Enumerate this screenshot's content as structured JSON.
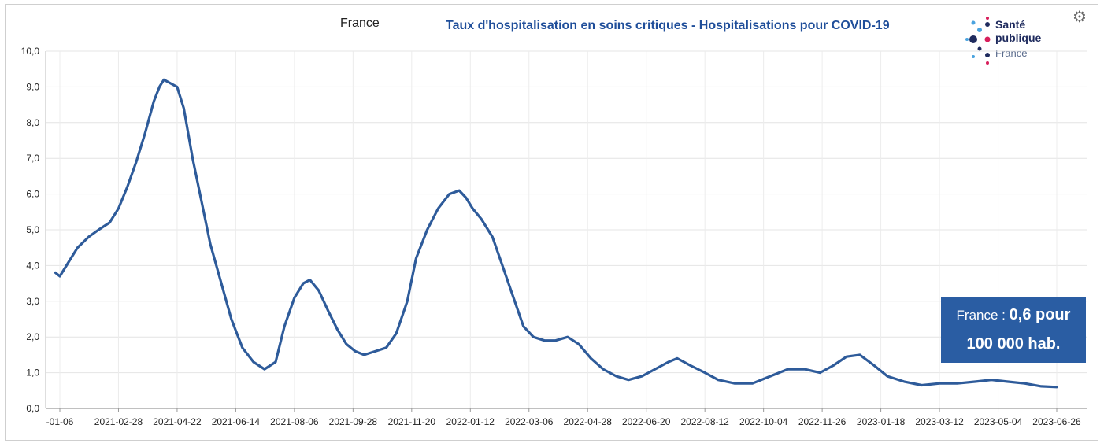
{
  "header": {
    "region": "France",
    "title": "Taux d'hospitalisation en soins critiques - Hospitalisations pour COVID-19"
  },
  "logo": {
    "line1": "Santé",
    "line2": "publique",
    "line3": "France",
    "colors": [
      "#1f2b5e",
      "#d81e5b",
      "#4aa3df"
    ]
  },
  "settings_icon": "gear-icon",
  "tooltip": {
    "prefix": "France : ",
    "value": "0,6 pour",
    "line2": "100 000 hab."
  },
  "colors": {
    "line": "#2e5b9a",
    "tooltip_bg": "#2a5da3",
    "title": "#1f4e9a"
  },
  "chart_data": {
    "type": "line",
    "title": "Taux d'hospitalisation en soins critiques - Hospitalisations pour COVID-19",
    "subtitle": "France",
    "xlabel": "",
    "ylabel": "",
    "ylim": [
      0,
      10
    ],
    "grid": true,
    "y_ticks": [
      "0,0",
      "1,0",
      "2,0",
      "3,0",
      "4,0",
      "5,0",
      "6,0",
      "7,0",
      "8,0",
      "9,0",
      "10,0"
    ],
    "x_ticks": [
      "-01-06",
      "2021-02-28",
      "2021-04-22",
      "2021-06-14",
      "2021-08-06",
      "2021-09-28",
      "2021-11-20",
      "2022-01-12",
      "2022-03-06",
      "2022-04-28",
      "2022-06-20",
      "2022-08-12",
      "2022-10-04",
      "2022-11-26",
      "2023-01-18",
      "2023-03-12",
      "2023-05-04",
      "2023-06-26"
    ],
    "series": [
      {
        "x": [
          "2021-01-02",
          "2021-01-06",
          "2021-01-14",
          "2021-01-22",
          "2021-02-01",
          "2021-02-10",
          "2021-02-20",
          "2021-02-28",
          "2021-03-08",
          "2021-03-16",
          "2021-03-24",
          "2021-04-01",
          "2021-04-06",
          "2021-04-10",
          "2021-04-16",
          "2021-04-22",
          "2021-04-28",
          "2021-05-06",
          "2021-05-14",
          "2021-05-22",
          "2021-06-01",
          "2021-06-10",
          "2021-06-20",
          "2021-06-30",
          "2021-07-10",
          "2021-07-20",
          "2021-07-28",
          "2021-08-06",
          "2021-08-14",
          "2021-08-20",
          "2021-08-28",
          "2021-09-06",
          "2021-09-14",
          "2021-09-22",
          "2021-09-30",
          "2021-10-08",
          "2021-10-18",
          "2021-10-28",
          "2021-11-06",
          "2021-11-16",
          "2021-11-24",
          "2021-12-04",
          "2021-12-14",
          "2021-12-24",
          "2022-01-02",
          "2022-01-08",
          "2022-01-14",
          "2022-01-22",
          "2022-02-01",
          "2022-02-10",
          "2022-02-20",
          "2022-03-01",
          "2022-03-10",
          "2022-03-20",
          "2022-03-30",
          "2022-04-10",
          "2022-04-20",
          "2022-05-01",
          "2022-05-12",
          "2022-05-24",
          "2022-06-04",
          "2022-06-16",
          "2022-06-28",
          "2022-07-10",
          "2022-07-18",
          "2022-07-30",
          "2022-08-12",
          "2022-08-24",
          "2022-09-08",
          "2022-09-24",
          "2022-10-10",
          "2022-10-26",
          "2022-11-10",
          "2022-11-24",
          "2022-12-06",
          "2022-12-18",
          "2022-12-30",
          "2023-01-12",
          "2023-01-24",
          "2023-02-08",
          "2023-02-24",
          "2023-03-12",
          "2023-03-28",
          "2023-04-14",
          "2023-04-28",
          "2023-05-12",
          "2023-05-28",
          "2023-06-12",
          "2023-06-26"
        ],
        "y": [
          3.8,
          3.7,
          4.1,
          4.5,
          4.8,
          5.0,
          5.2,
          5.6,
          6.2,
          6.9,
          7.7,
          8.6,
          9.0,
          9.2,
          9.1,
          9.0,
          8.4,
          7.0,
          5.8,
          4.6,
          3.5,
          2.5,
          1.7,
          1.3,
          1.1,
          1.3,
          2.3,
          3.1,
          3.5,
          3.6,
          3.3,
          2.7,
          2.2,
          1.8,
          1.6,
          1.5,
          1.6,
          1.7,
          2.1,
          3.0,
          4.2,
          5.0,
          5.6,
          6.0,
          6.1,
          5.9,
          5.6,
          5.3,
          4.8,
          4.0,
          3.1,
          2.3,
          2.0,
          1.9,
          1.9,
          2.0,
          1.8,
          1.4,
          1.1,
          0.9,
          0.8,
          0.9,
          1.1,
          1.3,
          1.4,
          1.2,
          1.0,
          0.8,
          0.7,
          0.7,
          0.9,
          1.1,
          1.1,
          1.0,
          1.2,
          1.45,
          1.5,
          1.2,
          0.9,
          0.75,
          0.65,
          0.7,
          0.7,
          0.75,
          0.8,
          0.75,
          0.7,
          0.62,
          0.6
        ]
      }
    ]
  }
}
